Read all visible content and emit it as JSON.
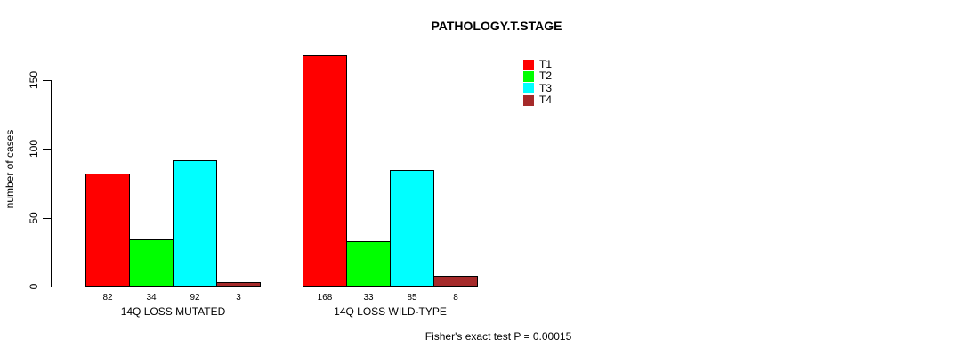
{
  "chart_data": {
    "type": "bar",
    "title": "PATHOLOGY.T.STAGE",
    "ylabel": "number of cases",
    "xlabel": "",
    "footnote": "Fisher's exact test P = 0.00015",
    "groups": [
      "14Q LOSS MUTATED",
      "14Q LOSS WILD-TYPE"
    ],
    "series": [
      {
        "name": "T1",
        "color": "#FF0000",
        "values": [
          82,
          168
        ]
      },
      {
        "name": "T2",
        "color": "#00FF00",
        "values": [
          34,
          33
        ]
      },
      {
        "name": "T3",
        "color": "#00FFFF",
        "values": [
          92,
          85
        ]
      },
      {
        "name": "T4",
        "color": "#A52A2A",
        "values": [
          3,
          8
        ]
      }
    ],
    "bar_labels": [
      [
        "82",
        "34",
        "92",
        "3"
      ],
      [
        "168",
        "33",
        "85",
        "8"
      ]
    ],
    "yticks": [
      0,
      50,
      100,
      150
    ],
    "ylim": [
      0,
      168
    ],
    "grid": false,
    "legend_position": "top-right-inside",
    "bar_border_color": "#000000",
    "axis_color": "#000000"
  }
}
